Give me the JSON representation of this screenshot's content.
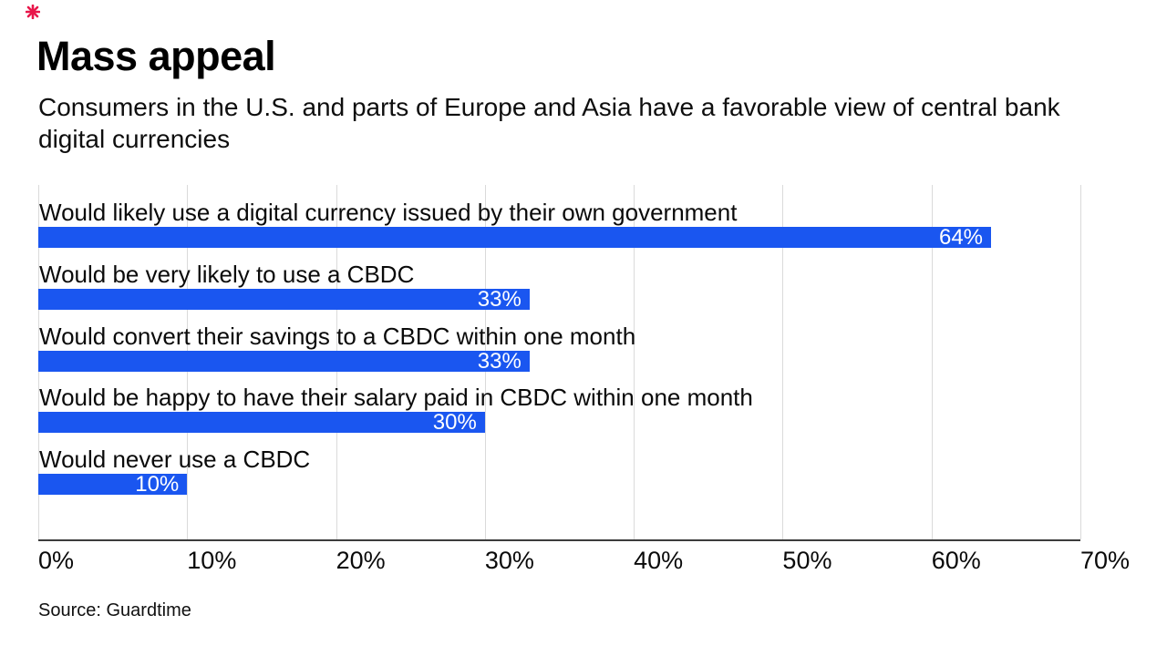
{
  "brand_mark": {
    "name": "asterisk-brand-mark",
    "color": "#e8174a"
  },
  "header": {
    "title": "Mass appeal",
    "subtitle": "Consumers in the U.S. and parts of Europe and Asia have a favorable view of central bank digital currencies"
  },
  "source": "Source: Guardtime",
  "chart_data": {
    "type": "bar",
    "orientation": "horizontal",
    "title": "Mass appeal",
    "subtitle": "Consumers in the U.S. and parts of Europe and Asia have a favorable view of central bank digital currencies",
    "categories": [
      "Would likely use a digital currency issued by their own government",
      "Would be very likely to use a CBDC",
      "Would convert their savings to a CBDC within one month",
      "Would be happy to have their salary paid in CBDC within one month",
      "Would never use a CBDC"
    ],
    "values": [
      64,
      33,
      33,
      30,
      10
    ],
    "value_labels": [
      "64%",
      "33%",
      "33%",
      "30%",
      "10%"
    ],
    "xlabel": "",
    "ylabel": "",
    "xlim": [
      0,
      70
    ],
    "x_ticks": [
      "0%",
      "10%",
      "20%",
      "30%",
      "40%",
      "50%",
      "60%",
      "70%"
    ],
    "grid": "vertical-only",
    "legend": "none",
    "bar_color": "#1a56f0",
    "gridline_color": "#dadada",
    "axis_line_color": "#3c3c3c",
    "source": "Source: Guardtime"
  }
}
